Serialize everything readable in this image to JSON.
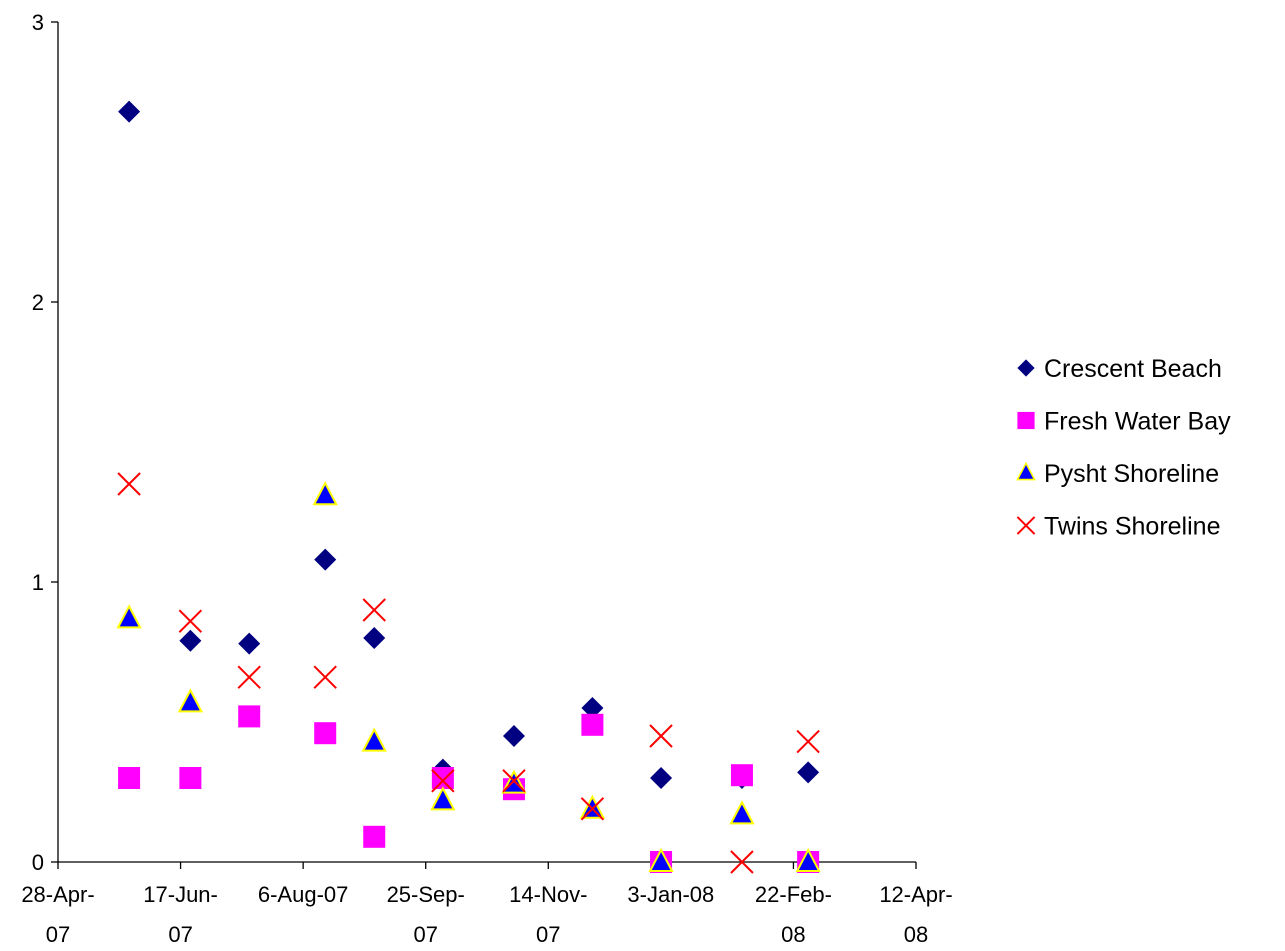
{
  "chart_data": {
    "type": "scatter",
    "title": "",
    "xlabel": "",
    "ylabel": "",
    "xlim": [
      "2007-04-28",
      "2008-04-12"
    ],
    "ylim": [
      0,
      3
    ],
    "x_ticks": [
      {
        "date": "2007-04-28",
        "line1": "28-Apr-",
        "line2": "07"
      },
      {
        "date": "2007-06-17",
        "line1": "17-Jun-",
        "line2": "07"
      },
      {
        "date": "2007-08-06",
        "line1": "6-Aug-07",
        "line2": ""
      },
      {
        "date": "2007-09-25",
        "line1": "25-Sep-",
        "line2": "07"
      },
      {
        "date": "2007-11-14",
        "line1": "14-Nov-",
        "line2": "07"
      },
      {
        "date": "2008-01-03",
        "line1": "3-Jan-08",
        "line2": ""
      },
      {
        "date": "2008-02-22",
        "line1": "22-Feb-",
        "line2": "08"
      },
      {
        "date": "2008-04-12",
        "line1": "12-Apr-",
        "line2": "08"
      }
    ],
    "y_ticks": [
      {
        "value": 0,
        "label": "0"
      },
      {
        "value": 1,
        "label": "1"
      },
      {
        "value": 2,
        "label": "2"
      },
      {
        "value": 3,
        "label": "3"
      }
    ],
    "grid": false,
    "legend_position": "right",
    "series": [
      {
        "name": "Crescent Beach",
        "marker": "diamond",
        "color": "#000080",
        "points": [
          {
            "x": "2007-05-27",
            "y": 2.68
          },
          {
            "x": "2007-06-21",
            "y": 0.79
          },
          {
            "x": "2007-07-15",
            "y": 0.78
          },
          {
            "x": "2007-08-15",
            "y": 1.08
          },
          {
            "x": "2007-09-04",
            "y": 0.8
          },
          {
            "x": "2007-10-02",
            "y": 0.33
          },
          {
            "x": "2007-10-31",
            "y": 0.45
          },
          {
            "x": "2007-12-02",
            "y": 0.55
          },
          {
            "x": "2007-12-30",
            "y": 0.3
          },
          {
            "x": "2008-02-01",
            "y": 0.3
          },
          {
            "x": "2008-02-28",
            "y": 0.32
          }
        ]
      },
      {
        "name": "Fresh Water Bay",
        "marker": "square",
        "color": "#ff00ff",
        "points": [
          {
            "x": "2007-05-27",
            "y": 0.3
          },
          {
            "x": "2007-06-21",
            "y": 0.3
          },
          {
            "x": "2007-07-15",
            "y": 0.52
          },
          {
            "x": "2007-08-15",
            "y": 0.46
          },
          {
            "x": "2007-09-04",
            "y": 0.09
          },
          {
            "x": "2007-10-02",
            "y": 0.3
          },
          {
            "x": "2007-10-31",
            "y": 0.26
          },
          {
            "x": "2007-12-02",
            "y": 0.49
          },
          {
            "x": "2007-12-30",
            "y": 0.0
          },
          {
            "x": "2008-02-01",
            "y": 0.31
          },
          {
            "x": "2008-02-28",
            "y": 0.0
          }
        ]
      },
      {
        "name": "Pysht Shoreline",
        "marker": "triangle",
        "color": "#0000ff",
        "stroke": "#ffff00",
        "points": [
          {
            "x": "2007-05-27",
            "y": 0.87
          },
          {
            "x": "2007-06-21",
            "y": 0.57
          },
          {
            "x": "2007-08-15",
            "y": 1.31
          },
          {
            "x": "2007-09-04",
            "y": 0.43
          },
          {
            "x": "2007-10-02",
            "y": 0.22
          },
          {
            "x": "2007-10-31",
            "y": 0.28
          },
          {
            "x": "2007-12-02",
            "y": 0.19
          },
          {
            "x": "2007-12-30",
            "y": 0.0
          },
          {
            "x": "2008-02-01",
            "y": 0.17
          },
          {
            "x": "2008-02-28",
            "y": 0.0
          }
        ]
      },
      {
        "name": "Twins Shoreline",
        "marker": "x",
        "color": "#ff0000",
        "points": [
          {
            "x": "2007-05-27",
            "y": 1.35
          },
          {
            "x": "2007-06-21",
            "y": 0.86
          },
          {
            "x": "2007-07-15",
            "y": 0.66
          },
          {
            "x": "2007-08-15",
            "y": 0.66
          },
          {
            "x": "2007-09-04",
            "y": 0.9
          },
          {
            "x": "2007-10-02",
            "y": 0.29
          },
          {
            "x": "2007-10-31",
            "y": 0.29
          },
          {
            "x": "2007-12-02",
            "y": 0.19
          },
          {
            "x": "2007-12-30",
            "y": 0.45
          },
          {
            "x": "2008-02-01",
            "y": 0.0
          },
          {
            "x": "2008-02-28",
            "y": 0.43
          }
        ]
      }
    ]
  }
}
